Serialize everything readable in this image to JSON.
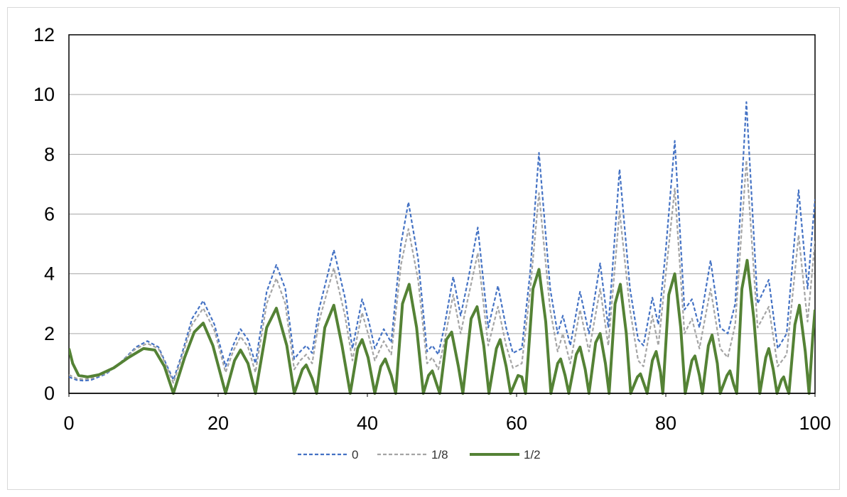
{
  "chart_data": {
    "type": "line",
    "title": "",
    "xlabel": "",
    "ylabel": "",
    "xlim": [
      0,
      100
    ],
    "ylim": [
      0,
      12
    ],
    "x_ticks": [
      "0",
      "20",
      "40",
      "60",
      "80",
      "100"
    ],
    "y_ticks": [
      "0",
      "2",
      "4",
      "6",
      "8",
      "10",
      "12"
    ],
    "grid": "horizontal",
    "legend": "bottom",
    "series": [
      {
        "name": "0",
        "color": "#4472c4",
        "style": "dashed",
        "points": [
          [
            0,
            0.55
          ],
          [
            1,
            0.45
          ],
          [
            2,
            0.42
          ],
          [
            3,
            0.45
          ],
          [
            5,
            0.65
          ],
          [
            7,
            1.05
          ],
          [
            9,
            1.55
          ],
          [
            10.5,
            1.75
          ],
          [
            12,
            1.55
          ],
          [
            13,
            1.0
          ],
          [
            14,
            0.45
          ],
          [
            15,
            1.2
          ],
          [
            16.5,
            2.5
          ],
          [
            18,
            3.1
          ],
          [
            19.5,
            2.3
          ],
          [
            21,
            0.9
          ],
          [
            22,
            1.6
          ],
          [
            23,
            2.15
          ],
          [
            24,
            1.8
          ],
          [
            25,
            1.0
          ],
          [
            26.5,
            3.4
          ],
          [
            27.8,
            4.3
          ],
          [
            29,
            3.5
          ],
          [
            30.2,
            1.15
          ],
          [
            31,
            1.4
          ],
          [
            31.8,
            1.6
          ],
          [
            32.6,
            1.35
          ],
          [
            33.5,
            2.8
          ],
          [
            35.5,
            4.8
          ],
          [
            37,
            3.2
          ],
          [
            38,
            1.5
          ],
          [
            39.3,
            3.15
          ],
          [
            40.2,
            2.4
          ],
          [
            41,
            1.5
          ],
          [
            42.2,
            2.15
          ],
          [
            43.2,
            1.7
          ],
          [
            44.5,
            5.0
          ],
          [
            45.5,
            6.4
          ],
          [
            46.8,
            4.5
          ],
          [
            48,
            1.4
          ],
          [
            48.7,
            1.6
          ],
          [
            49.5,
            1.3
          ],
          [
            50.3,
            2.2
          ],
          [
            51.5,
            3.9
          ],
          [
            52.5,
            2.6
          ],
          [
            53.5,
            3.8
          ],
          [
            54.8,
            5.55
          ],
          [
            56.2,
            2.2
          ],
          [
            57.5,
            3.6
          ],
          [
            58.6,
            2.2
          ],
          [
            59.5,
            1.35
          ],
          [
            60.7,
            1.5
          ],
          [
            61.8,
            4.0
          ],
          [
            63,
            8.05
          ],
          [
            64.5,
            3.5
          ],
          [
            65.5,
            2.0
          ],
          [
            66.2,
            2.6
          ],
          [
            67.2,
            1.6
          ],
          [
            68.5,
            3.4
          ],
          [
            69.7,
            2.0
          ],
          [
            71.2,
            4.35
          ],
          [
            72.3,
            2.2
          ],
          [
            73.8,
            7.5
          ],
          [
            75.2,
            3.5
          ],
          [
            76.3,
            1.8
          ],
          [
            77,
            1.6
          ],
          [
            78.2,
            3.2
          ],
          [
            79,
            2.3
          ],
          [
            80,
            4.8
          ],
          [
            81.2,
            8.45
          ],
          [
            82.5,
            2.8
          ],
          [
            83.5,
            3.15
          ],
          [
            84.5,
            2.2
          ],
          [
            86,
            4.45
          ],
          [
            87.3,
            2.2
          ],
          [
            88.3,
            2.0
          ],
          [
            89.3,
            3.0
          ],
          [
            90.8,
            9.75
          ],
          [
            92.3,
            3.0
          ],
          [
            93.8,
            3.8
          ],
          [
            95,
            1.5
          ],
          [
            96.2,
            2.0
          ],
          [
            97.8,
            6.8
          ],
          [
            99,
            3.5
          ],
          [
            100,
            6.5
          ]
        ]
      },
      {
        "name": "1/8",
        "color": "#a5a5a5",
        "style": "dashed",
        "points": [
          [
            0,
            0.62
          ],
          [
            1,
            0.5
          ],
          [
            2,
            0.47
          ],
          [
            3,
            0.5
          ],
          [
            5,
            0.68
          ],
          [
            7,
            1.05
          ],
          [
            9,
            1.5
          ],
          [
            10.5,
            1.67
          ],
          [
            12,
            1.5
          ],
          [
            13,
            0.95
          ],
          [
            14,
            0.35
          ],
          [
            15,
            1.1
          ],
          [
            16.5,
            2.3
          ],
          [
            18,
            2.85
          ],
          [
            19.5,
            2.1
          ],
          [
            21,
            0.7
          ],
          [
            22,
            1.4
          ],
          [
            23,
            1.9
          ],
          [
            24,
            1.55
          ],
          [
            25,
            0.7
          ],
          [
            26.5,
            3.0
          ],
          [
            27.8,
            3.85
          ],
          [
            29,
            3.0
          ],
          [
            30.2,
            0.8
          ],
          [
            31,
            1.1
          ],
          [
            31.8,
            1.3
          ],
          [
            32.6,
            1.0
          ],
          [
            33.5,
            2.4
          ],
          [
            35.5,
            4.2
          ],
          [
            37,
            2.6
          ],
          [
            38,
            1.1
          ],
          [
            39.3,
            2.7
          ],
          [
            40.2,
            1.9
          ],
          [
            41,
            1.1
          ],
          [
            42.2,
            1.75
          ],
          [
            43.2,
            1.3
          ],
          [
            44.5,
            4.3
          ],
          [
            45.5,
            5.5
          ],
          [
            46.8,
            3.8
          ],
          [
            48,
            1.0
          ],
          [
            48.7,
            1.2
          ],
          [
            49.5,
            0.8
          ],
          [
            50.3,
            1.7
          ],
          [
            51.5,
            3.3
          ],
          [
            52.5,
            2.0
          ],
          [
            53.5,
            3.2
          ],
          [
            54.8,
            4.7
          ],
          [
            56.2,
            1.6
          ],
          [
            57.5,
            2.9
          ],
          [
            58.6,
            1.6
          ],
          [
            59.5,
            0.85
          ],
          [
            60.7,
            1.0
          ],
          [
            61.8,
            3.4
          ],
          [
            63,
            6.7
          ],
          [
            64.5,
            2.8
          ],
          [
            65.5,
            1.4
          ],
          [
            66.2,
            2.0
          ],
          [
            67.2,
            1.0
          ],
          [
            68.5,
            2.8
          ],
          [
            69.7,
            1.4
          ],
          [
            71.2,
            3.5
          ],
          [
            72.3,
            1.6
          ],
          [
            73.8,
            6.1
          ],
          [
            75.2,
            2.8
          ],
          [
            76.3,
            1.1
          ],
          [
            77,
            0.9
          ],
          [
            78.2,
            2.6
          ],
          [
            79,
            1.6
          ],
          [
            80,
            4.0
          ],
          [
            81.2,
            6.85
          ],
          [
            82.5,
            2.0
          ],
          [
            83.5,
            2.5
          ],
          [
            84.5,
            1.5
          ],
          [
            86,
            3.5
          ],
          [
            87.3,
            1.5
          ],
          [
            88.3,
            1.2
          ],
          [
            89.3,
            2.3
          ],
          [
            90.8,
            7.8
          ],
          [
            92.3,
            2.2
          ],
          [
            93.8,
            2.9
          ],
          [
            95,
            0.9
          ],
          [
            96.2,
            1.3
          ],
          [
            97.8,
            5.3
          ],
          [
            99,
            2.4
          ],
          [
            100,
            5.1
          ]
        ]
      },
      {
        "name": "1/2",
        "color": "#548235",
        "style": "solid",
        "points": [
          [
            0,
            1.5
          ],
          [
            0.5,
            1.0
          ],
          [
            1.3,
            0.6
          ],
          [
            2.5,
            0.55
          ],
          [
            4,
            0.62
          ],
          [
            6,
            0.85
          ],
          [
            8,
            1.2
          ],
          [
            10,
            1.5
          ],
          [
            11.5,
            1.45
          ],
          [
            12.8,
            0.9
          ],
          [
            14,
            0.0
          ],
          [
            15.5,
            1.2
          ],
          [
            16.8,
            2.05
          ],
          [
            18,
            2.35
          ],
          [
            19.3,
            1.6
          ],
          [
            21,
            0.0
          ],
          [
            22.2,
            1.1
          ],
          [
            23,
            1.45
          ],
          [
            24,
            1.0
          ],
          [
            25,
            0.0
          ],
          [
            26.5,
            2.2
          ],
          [
            27.8,
            2.85
          ],
          [
            29.2,
            1.6
          ],
          [
            30.2,
            0.0
          ],
          [
            31.3,
            0.8
          ],
          [
            31.8,
            0.95
          ],
          [
            32.6,
            0.5
          ],
          [
            33.2,
            0.0
          ],
          [
            34.3,
            2.2
          ],
          [
            35.5,
            2.95
          ],
          [
            36.6,
            1.6
          ],
          [
            37.7,
            0.0
          ],
          [
            38.7,
            1.5
          ],
          [
            39.3,
            1.8
          ],
          [
            40.1,
            1.2
          ],
          [
            41,
            0.0
          ],
          [
            41.8,
            0.9
          ],
          [
            42.4,
            1.15
          ],
          [
            43.2,
            0.6
          ],
          [
            43.8,
            0.0
          ],
          [
            44.7,
            3.0
          ],
          [
            45.6,
            3.65
          ],
          [
            46.6,
            2.2
          ],
          [
            47.5,
            0.0
          ],
          [
            48.2,
            0.6
          ],
          [
            48.7,
            0.75
          ],
          [
            49.3,
            0.3
          ],
          [
            49.7,
            0.0
          ],
          [
            50.6,
            1.8
          ],
          [
            51.3,
            2.05
          ],
          [
            52.2,
            0.9
          ],
          [
            52.8,
            0.0
          ],
          [
            53.9,
            2.5
          ],
          [
            54.7,
            2.9
          ],
          [
            55.6,
            1.6
          ],
          [
            56.3,
            0.0
          ],
          [
            57.3,
            1.5
          ],
          [
            57.8,
            1.8
          ],
          [
            58.6,
            0.9
          ],
          [
            59.2,
            0.0
          ],
          [
            60.2,
            0.6
          ],
          [
            60.7,
            0.55
          ],
          [
            61.2,
            0.0
          ],
          [
            62.2,
            3.5
          ],
          [
            63,
            4.15
          ],
          [
            63.9,
            2.4
          ],
          [
            64.6,
            0.0
          ],
          [
            65.5,
            1.0
          ],
          [
            65.9,
            1.15
          ],
          [
            66.5,
            0.6
          ],
          [
            67,
            0.0
          ],
          [
            68,
            1.3
          ],
          [
            68.5,
            1.55
          ],
          [
            69.2,
            0.8
          ],
          [
            69.7,
            0.0
          ],
          [
            70.6,
            1.7
          ],
          [
            71.2,
            2.0
          ],
          [
            71.9,
            1.0
          ],
          [
            72.4,
            0.0
          ],
          [
            73.2,
            3.0
          ],
          [
            73.9,
            3.65
          ],
          [
            74.7,
            2.0
          ],
          [
            75.3,
            0.0
          ],
          [
            76.2,
            0.55
          ],
          [
            76.6,
            0.65
          ],
          [
            77.1,
            0.3
          ],
          [
            77.5,
            0.0
          ],
          [
            78.2,
            1.1
          ],
          [
            78.7,
            1.4
          ],
          [
            79.3,
            0.7
          ],
          [
            79.6,
            0.0
          ],
          [
            80.4,
            3.3
          ],
          [
            81.2,
            4.0
          ],
          [
            82,
            2.2
          ],
          [
            82.6,
            0.0
          ],
          [
            83.5,
            1.1
          ],
          [
            83.9,
            1.25
          ],
          [
            84.5,
            0.6
          ],
          [
            84.9,
            0.0
          ],
          [
            85.7,
            1.6
          ],
          [
            86.2,
            1.95
          ],
          [
            86.9,
            1.0
          ],
          [
            87.3,
            0.0
          ],
          [
            88.2,
            0.6
          ],
          [
            88.6,
            0.75
          ],
          [
            89.1,
            0.3
          ],
          [
            89.5,
            0.0
          ],
          [
            90.2,
            3.5
          ],
          [
            90.9,
            4.45
          ],
          [
            91.8,
            2.5
          ],
          [
            92.6,
            0.0
          ],
          [
            93.4,
            1.2
          ],
          [
            93.8,
            1.5
          ],
          [
            94.4,
            0.8
          ],
          [
            94.9,
            0.0
          ],
          [
            95.5,
            0.45
          ],
          [
            95.8,
            0.55
          ],
          [
            96.2,
            0.2
          ],
          [
            96.5,
            0.0
          ],
          [
            97.3,
            2.3
          ],
          [
            97.9,
            2.95
          ],
          [
            98.7,
            1.4
          ],
          [
            99.2,
            0.0
          ],
          [
            99.7,
            1.9
          ],
          [
            100,
            2.8
          ]
        ]
      }
    ]
  }
}
